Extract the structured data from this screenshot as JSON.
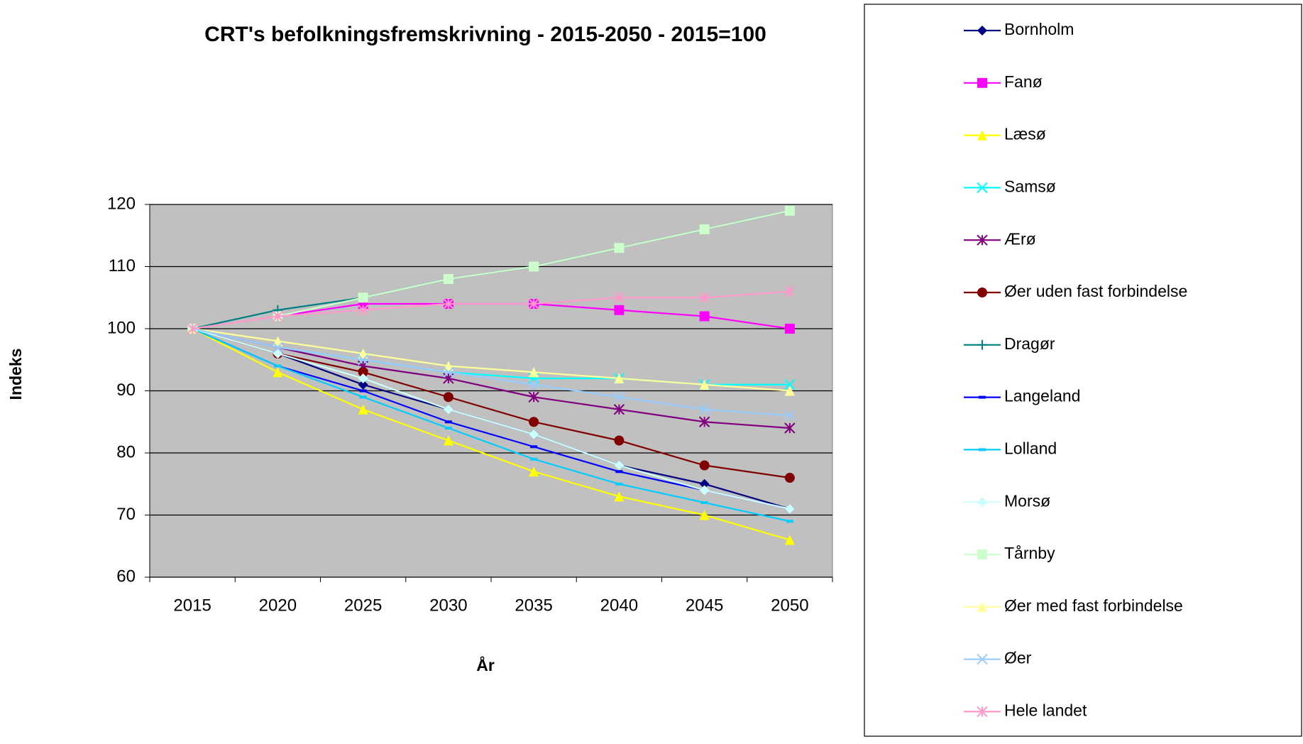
{
  "chart_data": {
    "type": "line",
    "title": "CRT's befolkningsfremskrivning - 2015-2050 - 2015=100",
    "x_label": "År",
    "y_label": "Indeks",
    "categories": [
      "2015",
      "2020",
      "2025",
      "2030",
      "2035",
      "2040",
      "2045",
      "2050"
    ],
    "ylim": [
      60,
      120
    ],
    "yticks": [
      60,
      70,
      80,
      90,
      100,
      110,
      120
    ],
    "grid": true,
    "legend": "right",
    "series": [
      {
        "name": "Bornholm",
        "color": "#000080",
        "marker": "diamond",
        "values": [
          100,
          96,
          91,
          87,
          83,
          78,
          75,
          71
        ]
      },
      {
        "name": "Fanø",
        "color": "#ff00ff",
        "marker": "square",
        "values": [
          100,
          102,
          104,
          104,
          104,
          103,
          102,
          100
        ]
      },
      {
        "name": "Læsø",
        "color": "#ffff00",
        "marker": "triangle",
        "values": [
          100,
          93,
          87,
          82,
          77,
          73,
          70,
          66
        ]
      },
      {
        "name": "Samsø",
        "color": "#00ffff",
        "marker": "x",
        "values": [
          100,
          97,
          95,
          93,
          92,
          92,
          91,
          91
        ]
      },
      {
        "name": "Ærø",
        "color": "#800080",
        "marker": "star",
        "values": [
          100,
          97,
          94,
          92,
          89,
          87,
          85,
          84
        ]
      },
      {
        "name": "Øer uden fast forbindelse",
        "color": "#800000",
        "marker": "circle",
        "values": [
          100,
          96,
          93,
          89,
          85,
          82,
          78,
          76
        ]
      },
      {
        "name": "Dragør",
        "color": "#008080",
        "marker": "plus",
        "values": [
          100,
          103,
          105,
          108,
          110,
          113,
          116,
          119
        ]
      },
      {
        "name": "Langeland",
        "color": "#0000ff",
        "marker": "dash",
        "values": [
          100,
          94,
          90,
          85,
          81,
          77,
          74,
          71
        ]
      },
      {
        "name": "Lolland",
        "color": "#00ccff",
        "marker": "dash",
        "values": [
          100,
          94,
          89,
          84,
          79,
          75,
          72,
          69
        ]
      },
      {
        "name": "Morsø",
        "color": "#ccffff",
        "marker": "diamond",
        "values": [
          100,
          96,
          92,
          87,
          83,
          78,
          74,
          71
        ]
      },
      {
        "name": "Tårnby",
        "color": "#ccffcc",
        "marker": "square",
        "values": [
          100,
          102,
          105,
          108,
          110,
          113,
          116,
          119
        ]
      },
      {
        "name": "Øer med fast forbindelse",
        "color": "#ffff99",
        "marker": "triangle",
        "values": [
          100,
          98,
          96,
          94,
          93,
          92,
          91,
          90
        ]
      },
      {
        "name": "Øer",
        "color": "#99ccff",
        "marker": "x",
        "values": [
          100,
          97,
          95,
          93,
          91,
          89,
          87,
          86
        ]
      },
      {
        "name": "Hele landet",
        "color": "#ff99cc",
        "marker": "star",
        "values": [
          100,
          102,
          103,
          104,
          104,
          105,
          105,
          106
        ]
      }
    ]
  }
}
